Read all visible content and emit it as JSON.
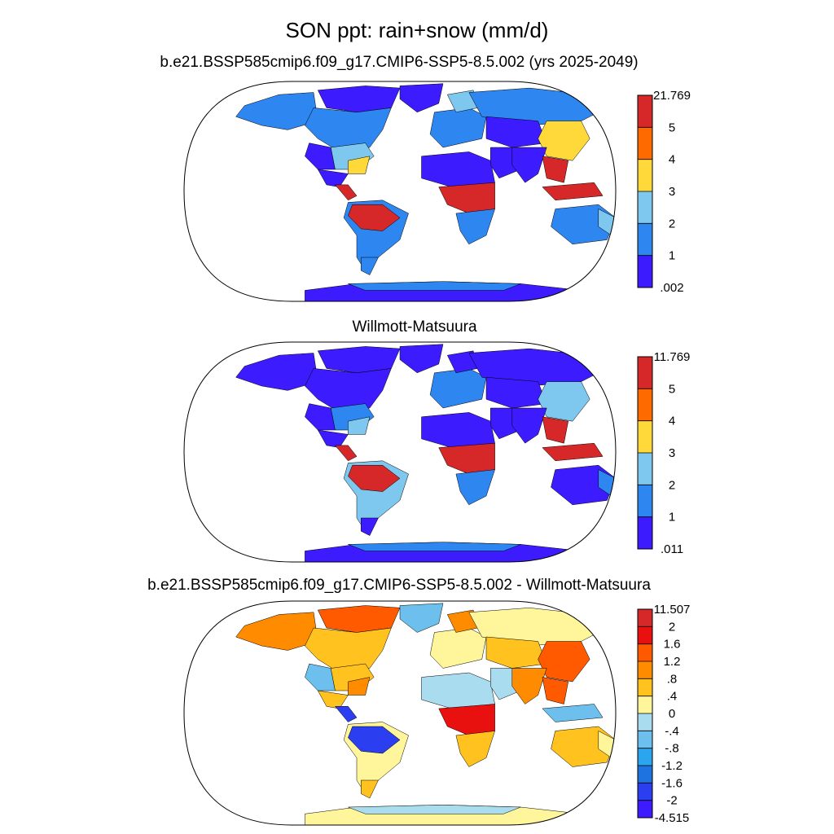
{
  "figure": {
    "title": "SON ppt: rain+snow (mm/d)"
  },
  "panels": [
    {
      "title": "b.e21.BSSP585cmip6.f09_g17.CMIP6-SSP5-8.5.002 (yrs 2025-2049)",
      "colorbar": {
        "labels": [
          "21.769",
          "5",
          "4",
          "3",
          "2",
          "1",
          ".002"
        ],
        "colors": [
          "#d62828",
          "#ff6a00",
          "#ffd93a",
          "#7ec8f0",
          "#2e86f0",
          "#3c1cff"
        ]
      },
      "regions": {
        "northamerica": "#2e86f0",
        "alaska": "#2e86f0",
        "canada_arctic": "#3c1cff",
        "usa_east": "#7ec8f0",
        "usa_southeast": "#ffd93a",
        "usa_west": "#3c1cff",
        "mexico": "#3c1cff",
        "centralamerica": "#d62828",
        "southamerica": "#2e86f0",
        "amazon": "#d62828",
        "patagonia": "#2e86f0",
        "greenland": "#3c1cff",
        "europe": "#2e86f0",
        "scandinavia": "#7ec8f0",
        "africa_north": "#3c1cff",
        "africa_central": "#d62828",
        "africa_south": "#2e86f0",
        "arabia": "#3c1cff",
        "russia": "#2e86f0",
        "centralasia": "#3c1cff",
        "eastasia": "#ffd93a",
        "india": "#3c1cff",
        "southeastasia": "#d62828",
        "indonesia": "#d62828",
        "australia": "#2e86f0",
        "australia_east": "#7ec8f0",
        "newzealand": "#ffd93a",
        "antarctica": "#3c1cff",
        "antarctica_coast": "#2e86f0"
      }
    },
    {
      "title": "Willmott-Matsuura",
      "colorbar": {
        "labels": [
          "11.769",
          "5",
          "4",
          "3",
          "2",
          "1",
          ".011"
        ],
        "colors": [
          "#d62828",
          "#ff6a00",
          "#ffd93a",
          "#7ec8f0",
          "#2e86f0",
          "#3c1cff"
        ]
      },
      "regions": {
        "northamerica": "#3c1cff",
        "alaska": "#3c1cff",
        "canada_arctic": "#3c1cff",
        "usa_east": "#2e86f0",
        "usa_southeast": "#7ec8f0",
        "usa_west": "#3c1cff",
        "mexico": "#3c1cff",
        "centralamerica": "#d62828",
        "southamerica": "#7ec8f0",
        "amazon": "#d62828",
        "patagonia": "#3c1cff",
        "greenland": "#3c1cff",
        "europe": "#2e86f0",
        "scandinavia": "#3c1cff",
        "africa_north": "#3c1cff",
        "africa_central": "#d62828",
        "africa_south": "#2e86f0",
        "arabia": "#3c1cff",
        "russia": "#3c1cff",
        "centralasia": "#3c1cff",
        "eastasia": "#7ec8f0",
        "india": "#3c1cff",
        "southeastasia": "#d62828",
        "indonesia": "#d62828",
        "australia": "#3c1cff",
        "australia_east": "#2e86f0",
        "newzealand": "#ffd93a",
        "antarctica": "#3c1cff",
        "antarctica_coast": "#2e86f0"
      }
    },
    {
      "title": "b.e21.BSSP585cmip6.f09_g17.CMIP6-SSP5-8.5.002 - Willmott-Matsuura",
      "colorbar": {
        "labels": [
          "11.507",
          "2",
          "1.6",
          "1.2",
          ".8",
          ".4",
          "0",
          "-.4",
          "-.8",
          "-1.2",
          "-1.6",
          "-2",
          "-4.515"
        ],
        "colors": [
          "#d62828",
          "#e8110f",
          "#ff5a00",
          "#ff8c00",
          "#ffc21f",
          "#fff59a",
          "#a9dcef",
          "#6dc0ee",
          "#2ba5ee",
          "#1f73e0",
          "#2b3ef0",
          "#3c1cff"
        ]
      },
      "regions": {
        "northamerica": "#ffc21f",
        "alaska": "#ff8c00",
        "canada_arctic": "#ff5a00",
        "usa_east": "#ffc21f",
        "usa_southeast": "#ff8c00",
        "usa_west": "#6dc0ee",
        "mexico": "#ffc21f",
        "centralamerica": "#2b3ef0",
        "southamerica": "#fff59a",
        "amazon": "#2b3ef0",
        "patagonia": "#ffc21f",
        "greenland": "#6dc0ee",
        "europe": "#fff59a",
        "scandinavia": "#ff8c00",
        "africa_north": "#a9dcef",
        "africa_central": "#e8110f",
        "africa_south": "#ffc21f",
        "arabia": "#a9dcef",
        "russia": "#fff59a",
        "centralasia": "#ffc21f",
        "eastasia": "#ff5a00",
        "india": "#ff8c00",
        "southeastasia": "#ff5a00",
        "indonesia": "#6dc0ee",
        "australia": "#ffc21f",
        "australia_east": "#fff59a",
        "newzealand": "#ffc21f",
        "antarctica": "#fff59a",
        "antarctica_coast": "#a9dcef"
      }
    }
  ]
}
